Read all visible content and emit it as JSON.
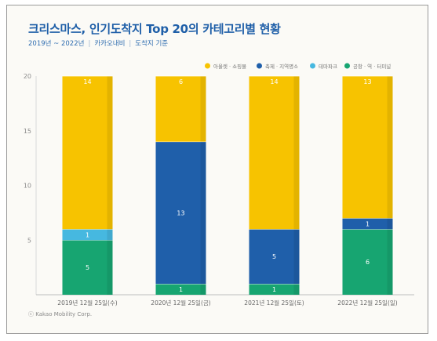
{
  "title": "크리스마스, 인기도착지 Top 20의 카테고리별 현황",
  "subtitle": {
    "years": "2019년 ~ 2022년",
    "source": "카카오내비",
    "basis": "도착지 기준"
  },
  "credit": "ⓒ Kakao Mobility Corp.",
  "colors": {
    "outlet": "#f7c300",
    "festival": "#1f5faa",
    "themepark": "#46b8e0",
    "station": "#17a571",
    "background": "#fbfaf6"
  },
  "chart_data": {
    "type": "bar",
    "stacked": true,
    "categories": [
      "2019년 12월 25일(수)",
      "2020년 12월 25일(금)",
      "2021년 12월 25일(토)",
      "2022년 12월 25일(일)"
    ],
    "series": [
      {
        "name": "공항 · 역 · 터미널",
        "color": "#17a571",
        "values": [
          5,
          1,
          1,
          6
        ]
      },
      {
        "name": "테마파크",
        "color": "#46b8e0",
        "values": [
          1,
          0,
          0,
          0
        ]
      },
      {
        "name": "축제 · 지역명소",
        "color": "#1f5faa",
        "values": [
          0,
          13,
          5,
          1
        ]
      },
      {
        "name": "아울렛 · 쇼핑몰",
        "color": "#f7c300",
        "values": [
          14,
          6,
          14,
          13
        ]
      }
    ],
    "legend_order": [
      "아울렛 · 쇼핑몰",
      "축제 · 지역명소",
      "테마파크",
      "공항 · 역 · 터미널"
    ],
    "yticks": [
      5,
      10,
      15,
      20
    ],
    "ylim": [
      0,
      20
    ],
    "grid": false,
    "legend_position": "top-right"
  }
}
